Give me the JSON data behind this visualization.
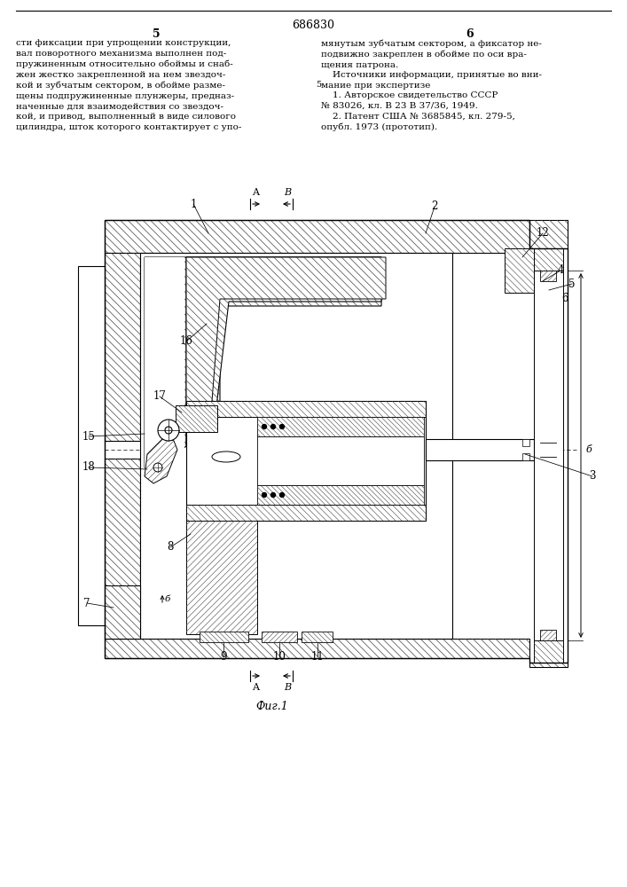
{
  "patent_number": "686830",
  "page_left": "5",
  "page_right": "6",
  "fig_label": "Фиг.1",
  "text_left": "сти фиксации при упрощении конструкции,\nвал поворотного механизма выполнен под-\nпружиненным относительно обоймы и снаб-\nжен жестко закрепленной на нем звездоч-\nкой и зубчатым сектором, в обойме разме-\nщены подпружиненные плунжеры, предназ-\nначенные для взаимодействия со звездоч-\nкой, и привод, выполненный в виде силового\nцилиндра, шток которого контактирует с упо-",
  "text_right": "мянутым зубчатым сектором, а фиксатор не-\nподвижно закреплен в обойме по оси вра-\nщения патрона.\n    Источники информации, принятые во вни-\nмание при экспертизе\n    1. Авторское свидетельство СССР\n№ 83026, кл. В 23 В 37/36, 1949.\n    2. Патент США № 3685845, кл. 279-5,\nопубл. 1973 (прототип).",
  "bg_color": "#ffffff",
  "lc": "#000000",
  "hc": "#444444"
}
